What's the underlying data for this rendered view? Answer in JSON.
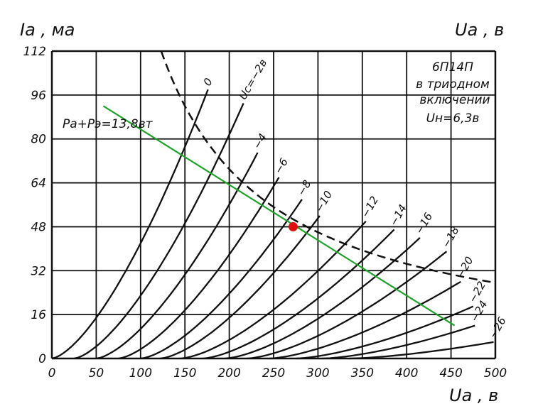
{
  "chart_data": {
    "type": "line",
    "title": "6П14П в триодном включении",
    "title_lines": [
      "6П14П",
      "в триодном",
      "включении",
      "Uн=6,3в"
    ],
    "xlabel": "Uа , в",
    "xlabel_top": "Uа , в",
    "ylabel": "Iа , ма",
    "xlim": [
      0,
      500
    ],
    "ylim": [
      0,
      112
    ],
    "x_ticks": [
      0,
      50,
      100,
      150,
      200,
      250,
      300,
      350,
      400,
      450,
      500
    ],
    "y_ticks": [
      0,
      16,
      32,
      48,
      64,
      80,
      96,
      112
    ],
    "grid": true,
    "series": [
      {
        "name": "0",
        "label": "0",
        "start_ua": 0,
        "end": [
          176,
          98
        ]
      },
      {
        "name": "-2",
        "label": "Uc=−2в",
        "start_ua": 25,
        "end": [
          216,
          93
        ]
      },
      {
        "name": "-4",
        "label": "−4",
        "start_ua": 50,
        "end": [
          232,
          75
        ]
      },
      {
        "name": "-6",
        "label": "−6",
        "start_ua": 75,
        "end": [
          256,
          66
        ]
      },
      {
        "name": "-8",
        "label": "−8",
        "start_ua": 100,
        "end": [
          282,
          58
        ]
      },
      {
        "name": "-10",
        "label": "−10",
        "start_ua": 122,
        "end": [
          302,
          52
        ]
      },
      {
        "name": "-12",
        "label": "−12",
        "start_ua": 145,
        "end": [
          354,
          50
        ]
      },
      {
        "name": "-14",
        "label": "−14",
        "start_ua": 170,
        "end": [
          386,
          47
        ]
      },
      {
        "name": "-16",
        "label": "−16",
        "start_ua": 195,
        "end": [
          415,
          44
        ]
      },
      {
        "name": "-18",
        "label": "−18",
        "start_ua": 220,
        "end": [
          445,
          39
        ]
      },
      {
        "name": "-20",
        "label": "−20",
        "start_ua": 245,
        "end": [
          461,
          28
        ]
      },
      {
        "name": "-22",
        "label": "−22",
        "start_ua": 275,
        "end": [
          475,
          19
        ]
      },
      {
        "name": "-24",
        "label": "−24",
        "start_ua": 305,
        "end": [
          477,
          12
        ]
      },
      {
        "name": "-26",
        "label": "−26",
        "start_ua": 335,
        "end": [
          498,
          6
        ]
      }
    ],
    "max_dissipation": {
      "label": "Pа+Pэ=13,8вт",
      "power_w": 13.8
    },
    "load_line": {
      "points": [
        [
          58,
          92
        ],
        [
          454,
          12
        ]
      ],
      "color": "#1fa32a"
    },
    "operating_point": {
      "x": 272,
      "y": 48,
      "color": "#e01010"
    }
  }
}
